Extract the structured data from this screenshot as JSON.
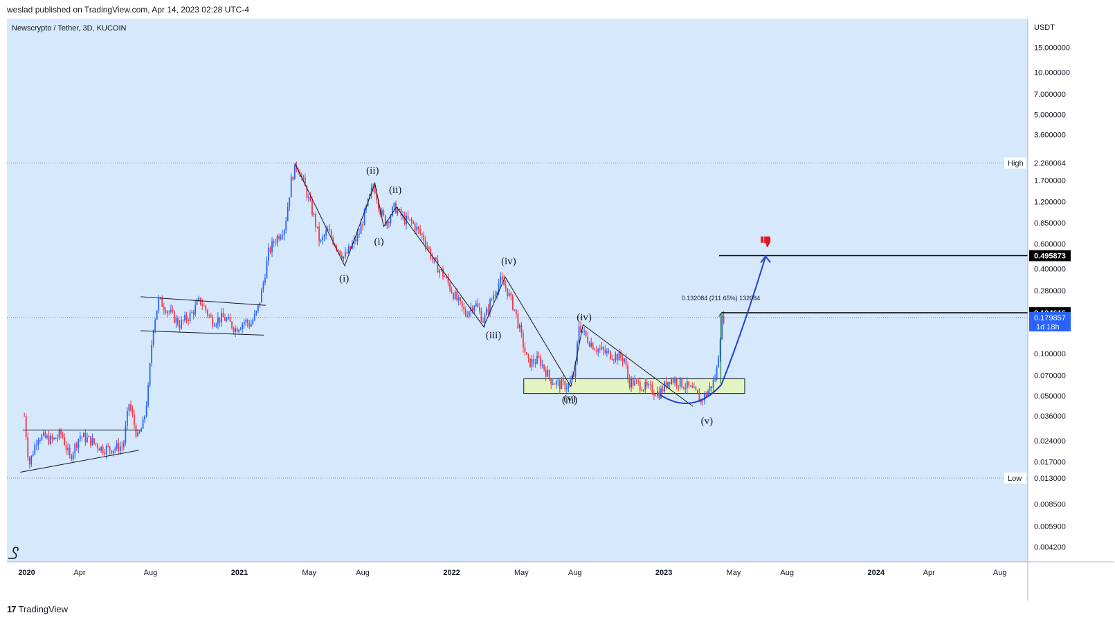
{
  "header": {
    "publisher_line": "weslad published on TradingView.com, Apr 14, 2023 02:28 UTC-4"
  },
  "footer": {
    "brand": "TradingView"
  },
  "colors": {
    "background": "#d6e8fb",
    "candle_up": "#2962ff",
    "candle_down": "#f23645",
    "price_badge": "#2962ff",
    "zone_fill": "#e4f3c2",
    "projection_curve": "#1e3fd6",
    "thumbs_down": "#e0141e"
  },
  "chart_data": {
    "type": "candlestick",
    "symbol_title": "Newscrypto / Tether, 3D, KUCOIN",
    "y_unit": "USDT",
    "y_scale": "log",
    "ylim": [
      0.0033,
      24.0
    ],
    "xlim": [
      "2019-11-28",
      "2024-09-18"
    ],
    "x_ticks": [
      {
        "date": "2020-01-01",
        "label": "2020",
        "bold": true
      },
      {
        "date": "2020-04-01",
        "label": "Apr"
      },
      {
        "date": "2020-08-01",
        "label": "Aug"
      },
      {
        "date": "2021-01-01",
        "label": "2021",
        "bold": true
      },
      {
        "date": "2021-05-01",
        "label": "May"
      },
      {
        "date": "2021-08-01",
        "label": "Aug"
      },
      {
        "date": "2022-01-01",
        "label": "2022",
        "bold": true
      },
      {
        "date": "2022-05-01",
        "label": "May"
      },
      {
        "date": "2022-08-01",
        "label": "Aug"
      },
      {
        "date": "2023-01-01",
        "label": "2023",
        "bold": true
      },
      {
        "date": "2023-05-01",
        "label": "May"
      },
      {
        "date": "2023-08-01",
        "label": "Aug"
      },
      {
        "date": "2024-01-01",
        "label": "2024",
        "bold": true
      },
      {
        "date": "2024-04-01",
        "label": "Apr"
      },
      {
        "date": "2024-08-01",
        "label": "Aug"
      }
    ],
    "y_ticks": [
      {
        "value": 15.0,
        "label": "15.000000"
      },
      {
        "value": 10.0,
        "label": "10.000000"
      },
      {
        "value": 7.0,
        "label": "7.000000"
      },
      {
        "value": 5.0,
        "label": "5.000000"
      },
      {
        "value": 3.6,
        "label": "3.600000"
      },
      {
        "value": 1.7,
        "label": "1.700000"
      },
      {
        "value": 1.2,
        "label": "1.200000"
      },
      {
        "value": 0.85,
        "label": "0.850000"
      },
      {
        "value": 0.6,
        "label": "0.600000"
      },
      {
        "value": 0.4,
        "label": "0.400000"
      },
      {
        "value": 0.28,
        "label": "0.280000"
      },
      {
        "value": 0.1,
        "label": "0.100000"
      },
      {
        "value": 0.07,
        "label": "0.070000"
      },
      {
        "value": 0.05,
        "label": "0.050000"
      },
      {
        "value": 0.036,
        "label": "0.036000"
      },
      {
        "value": 0.024,
        "label": "0.024000"
      },
      {
        "value": 0.017,
        "label": "0.017000"
      },
      {
        "value": 0.0085,
        "label": "0.008500"
      },
      {
        "value": 0.0059,
        "label": "0.005900"
      },
      {
        "value": 0.0042,
        "label": "0.004200"
      }
    ],
    "high": {
      "label": "High",
      "value": 2.260064,
      "value_label": "2.260064"
    },
    "low": {
      "label": "Low",
      "value": 0.013,
      "value_label": "0.013000"
    },
    "price_lines": [
      {
        "value": 0.495873,
        "label": "0.495873",
        "style": "black"
      },
      {
        "value": 0.194616,
        "label": "0.194616",
        "style": "black"
      }
    ],
    "last_price": {
      "value": 0.179857,
      "label": "0.179857",
      "countdown": "1d 18h"
    },
    "measurement": {
      "text": "0.132084 (211.65%) 132084",
      "date": "2023-04-09",
      "from": 0.061,
      "to": 0.193
    },
    "price_path": [
      [
        "2019-12-28",
        0.036
      ],
      [
        "2020-01-05",
        0.016
      ],
      [
        "2020-01-20",
        0.026
      ],
      [
        "2020-02-15",
        0.024
      ],
      [
        "2020-03-01",
        0.027
      ],
      [
        "2020-03-15",
        0.018
      ],
      [
        "2020-04-01",
        0.026
      ],
      [
        "2020-04-20",
        0.024
      ],
      [
        "2020-05-10",
        0.021
      ],
      [
        "2020-05-25",
        0.021
      ],
      [
        "2020-06-15",
        0.022
      ],
      [
        "2020-06-25",
        0.044
      ],
      [
        "2020-07-10",
        0.025
      ],
      [
        "2020-07-20",
        0.032
      ],
      [
        "2020-07-28",
        0.055
      ],
      [
        "2020-08-05",
        0.15
      ],
      [
        "2020-08-15",
        0.24
      ],
      [
        "2020-09-01",
        0.2
      ],
      [
        "2020-09-20",
        0.16
      ],
      [
        "2020-10-10",
        0.19
      ],
      [
        "2020-10-25",
        0.24
      ],
      [
        "2020-11-15",
        0.17
      ],
      [
        "2020-12-05",
        0.18
      ],
      [
        "2020-12-25",
        0.15
      ],
      [
        "2021-01-10",
        0.17
      ],
      [
        "2021-01-20",
        0.16
      ],
      [
        "2021-02-01",
        0.2
      ],
      [
        "2021-02-10",
        0.3
      ],
      [
        "2021-02-20",
        0.52
      ],
      [
        "2021-03-01",
        0.62
      ],
      [
        "2021-03-20",
        0.8
      ],
      [
        "2021-04-01",
        1.8
      ],
      [
        "2021-04-10",
        2.2
      ],
      [
        "2021-04-20",
        1.7
      ],
      [
        "2021-05-01",
        1.2
      ],
      [
        "2021-05-10",
        0.9
      ],
      [
        "2021-05-20",
        0.6
      ],
      [
        "2021-06-01",
        0.75
      ],
      [
        "2021-06-15",
        0.6
      ],
      [
        "2021-06-30",
        0.48
      ],
      [
        "2021-07-10",
        0.55
      ],
      [
        "2021-07-25",
        0.7
      ],
      [
        "2021-08-05",
        1.0
      ],
      [
        "2021-08-20",
        1.6
      ],
      [
        "2021-09-01",
        1.0
      ],
      [
        "2021-09-10",
        0.85
      ],
      [
        "2021-09-25",
        1.1
      ],
      [
        "2021-10-10",
        0.9
      ],
      [
        "2021-10-25",
        0.85
      ],
      [
        "2021-11-15",
        0.65
      ],
      [
        "2021-12-01",
        0.45
      ],
      [
        "2021-12-20",
        0.35
      ],
      [
        "2022-01-05",
        0.26
      ],
      [
        "2022-01-25",
        0.19
      ],
      [
        "2022-02-10",
        0.23
      ],
      [
        "2022-02-25",
        0.17
      ],
      [
        "2022-03-10",
        0.24
      ],
      [
        "2022-03-25",
        0.33
      ],
      [
        "2022-04-05",
        0.29
      ],
      [
        "2022-04-20",
        0.2
      ],
      [
        "2022-05-01",
        0.13
      ],
      [
        "2022-05-12",
        0.085
      ],
      [
        "2022-06-01",
        0.09
      ],
      [
        "2022-06-20",
        0.065
      ],
      [
        "2022-07-05",
        0.06
      ],
      [
        "2022-07-20",
        0.059
      ],
      [
        "2022-08-01",
        0.072
      ],
      [
        "2022-08-08",
        0.16
      ],
      [
        "2022-08-20",
        0.13
      ],
      [
        "2022-09-05",
        0.11
      ],
      [
        "2022-09-25",
        0.1
      ],
      [
        "2022-10-10",
        0.096
      ],
      [
        "2022-10-25",
        0.092
      ],
      [
        "2022-11-01",
        0.063
      ],
      [
        "2022-11-20",
        0.06
      ],
      [
        "2022-12-10",
        0.055
      ],
      [
        "2022-12-25",
        0.052
      ],
      [
        "2023-01-10",
        0.066
      ],
      [
        "2023-01-25",
        0.063
      ],
      [
        "2023-02-10",
        0.058
      ],
      [
        "2023-02-25",
        0.052
      ],
      [
        "2023-03-05",
        0.046
      ],
      [
        "2023-03-15",
        0.052
      ],
      [
        "2023-03-25",
        0.06
      ],
      [
        "2023-04-01",
        0.07
      ],
      [
        "2023-04-06",
        0.11
      ],
      [
        "2023-04-10",
        0.17
      ],
      [
        "2023-04-14",
        0.18
      ]
    ],
    "annotations": {
      "wave_labels": [
        {
          "text": "(i)",
          "date": "2021-06-30",
          "value": 0.325
        },
        {
          "text": "(ii)",
          "date": "2021-08-18",
          "value": 1.9
        },
        {
          "text": "(i)",
          "date": "2021-08-29",
          "value": 0.595
        },
        {
          "text": "(ii)",
          "date": "2021-09-26",
          "value": 1.38
        },
        {
          "text": "(iii)",
          "date": "2022-03-14",
          "value": 0.128
        },
        {
          "text": "(iv)",
          "date": "2022-04-09",
          "value": 0.43
        },
        {
          "text": "(iv)",
          "date": "2022-08-17",
          "value": 0.172
        },
        {
          "text": "(v)",
          "date": "2022-07-23",
          "value": 0.0455
        },
        {
          "text": "(iii)",
          "date": "2022-07-23",
          "value": 0.0445
        },
        {
          "text": "(v)",
          "date": "2023-03-16",
          "value": 0.0315
        }
      ],
      "wave_path_1": [
        [
          "2021-04-06",
          2.26
        ],
        [
          "2021-07-01",
          0.42
        ],
        [
          "2021-08-22",
          1.62
        ],
        [
          "2021-09-06",
          0.8
        ],
        [
          "2021-09-28",
          1.1
        ],
        [
          "2022-02-25",
          0.155
        ],
        [
          "2022-04-03",
          0.35
        ],
        [
          "2022-07-25",
          0.058
        ]
      ],
      "wave_path_2": [
        [
          "2022-07-25",
          0.058
        ],
        [
          "2022-08-15",
          0.16
        ],
        [
          "2023-02-20",
          0.042
        ]
      ],
      "trend_lines": [
        {
          "points": [
            [
              "2019-12-21",
              0.0143
            ],
            [
              "2020-07-12",
              0.0205
            ]
          ]
        },
        {
          "points": [
            [
              "2019-12-25",
              0.0285
            ],
            [
              "2020-07-15",
              0.0285
            ]
          ]
        },
        {
          "points": [
            [
              "2020-07-15",
              0.253
            ],
            [
              "2021-02-15",
              0.22
            ]
          ]
        },
        {
          "points": [
            [
              "2020-07-15",
              0.145
            ],
            [
              "2021-02-12",
              0.135
            ]
          ]
        }
      ],
      "support_zone": {
        "date_from": "2022-05-05",
        "date_to": "2023-05-20",
        "y_top": 0.066,
        "y_bottom": 0.052
      },
      "projection_curve": [
        [
          "2022-12-25",
          0.051
        ],
        [
          "2023-02-20",
          0.041
        ],
        [
          "2023-04-10",
          0.06
        ],
        [
          "2023-06-01",
          0.25
        ],
        [
          "2023-06-25",
          0.49
        ]
      ],
      "thumbs_down": {
        "date": "2023-06-25",
        "value": 0.62
      }
    }
  }
}
